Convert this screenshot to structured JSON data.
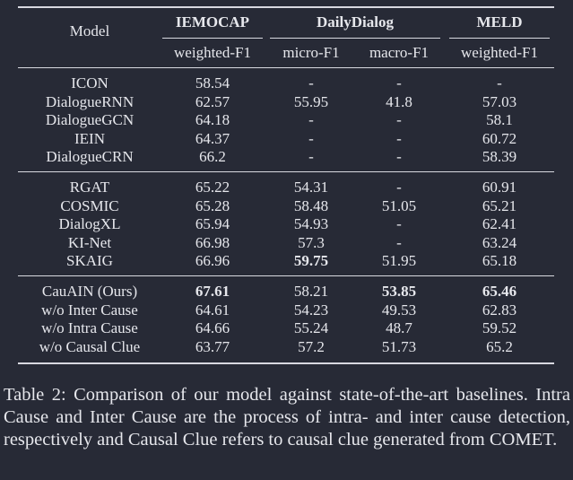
{
  "table": {
    "model_header": "Model",
    "datasets": [
      "IEMOCAP",
      "DailyDialog",
      "MELD"
    ],
    "metrics": [
      "weighted-F1",
      "micro-F1",
      "macro-F1",
      "weighted-F1"
    ],
    "groups": [
      {
        "rows": [
          {
            "model": "ICON",
            "values": [
              "58.54",
              "-",
              "-",
              "-"
            ],
            "bold": []
          },
          {
            "model": "DialogueRNN",
            "values": [
              "62.57",
              "55.95",
              "41.8",
              "57.03"
            ],
            "bold": []
          },
          {
            "model": "DialogueGCN",
            "values": [
              "64.18",
              "-",
              "-",
              "58.1"
            ],
            "bold": []
          },
          {
            "model": "IEIN",
            "values": [
              "64.37",
              "-",
              "-",
              "60.72"
            ],
            "bold": []
          },
          {
            "model": "DialogueCRN",
            "values": [
              "66.2",
              "-",
              "-",
              "58.39"
            ],
            "bold": []
          }
        ]
      },
      {
        "rows": [
          {
            "model": "RGAT",
            "values": [
              "65.22",
              "54.31",
              "-",
              "60.91"
            ],
            "bold": []
          },
          {
            "model": "COSMIC",
            "values": [
              "65.28",
              "58.48",
              "51.05",
              "65.21"
            ],
            "bold": []
          },
          {
            "model": "DialogXL",
            "values": [
              "65.94",
              "54.93",
              "-",
              "62.41"
            ],
            "bold": []
          },
          {
            "model": "KI-Net",
            "values": [
              "66.98",
              "57.3",
              "-",
              "63.24"
            ],
            "bold": []
          },
          {
            "model": "SKAIG",
            "values": [
              "66.96",
              "59.75",
              "51.95",
              "65.18"
            ],
            "bold": [
              1
            ]
          }
        ]
      },
      {
        "rows": [
          {
            "model": "CauAIN (Ours)",
            "values": [
              "67.61",
              "58.21",
              "53.85",
              "65.46"
            ],
            "bold": [
              0,
              2,
              3
            ]
          },
          {
            "model": "w/o Inter Cause",
            "values": [
              "64.61",
              "54.23",
              "49.53",
              "62.83"
            ],
            "bold": []
          },
          {
            "model": "w/o Intra Cause",
            "values": [
              "64.66",
              "55.24",
              "48.7",
              "59.52"
            ],
            "bold": []
          },
          {
            "model": "w/o Causal Clue",
            "values": [
              "63.77",
              "57.2",
              "51.73",
              "65.2"
            ],
            "bold": []
          }
        ]
      }
    ]
  },
  "caption": "Table 2: Comparison of our model against state-of-the-art baselines. Intra Cause and Inter Cause are the process of intra- and inter cause detection, respectively and Causal Clue refers to causal clue generated from COMET."
}
